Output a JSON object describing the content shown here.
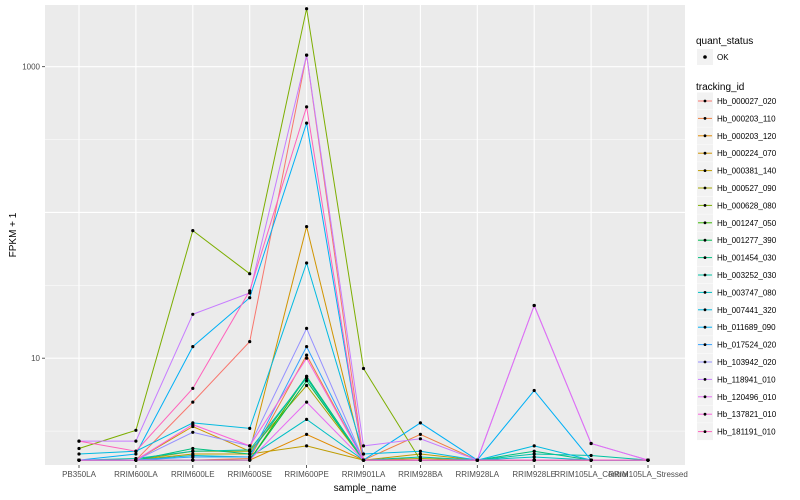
{
  "chart_data": {
    "type": "line",
    "title": "",
    "xlabel": "sample_name",
    "ylabel": "FPKM + 1",
    "y_scale": "log10",
    "ylim": [
      1.85,
      2650
    ],
    "y_ticks": [
      10,
      1000
    ],
    "y_tick_labels": [
      "10",
      "1000"
    ],
    "grid": true,
    "legend_position": "right",
    "categories": [
      "PB350LA",
      "RRIM600LA",
      "RRIM600LE",
      "RRIM600SE",
      "RRIM600PE",
      "RRIM901LA",
      "RRIM928BA",
      "RRIM928LA",
      "RRIM928LE",
      "RRIM105LA_Control",
      "RRIM105LA_Stressed"
    ],
    "point_legend": {
      "title": "quant_status",
      "entries": [
        "OK"
      ]
    },
    "series_legend_title": "tracking_id",
    "series": [
      {
        "name": "Hb_000027_020",
        "color": "#F8766D",
        "values": [
          2.0,
          2.0,
          5.0,
          13.0,
          1200,
          2.0,
          2.0,
          2.0,
          2.0,
          2.0,
          2.0
        ]
      },
      {
        "name": "Hb_000203_110",
        "color": "#EE8043",
        "values": [
          2.0,
          2.0,
          2.0,
          2.05,
          10.5,
          2.0,
          3.0,
          2.0,
          2.0,
          2.0,
          2.0
        ]
      },
      {
        "name": "Hb_000203_120",
        "color": "#E18A00",
        "values": [
          2.0,
          2.0,
          2.0,
          2.0,
          3.0,
          2.0,
          2.0,
          2.0,
          2.0,
          2.0,
          2.0
        ]
      },
      {
        "name": "Hb_000224_070",
        "color": "#D09400",
        "values": [
          2.0,
          2.0,
          3.4,
          2.3,
          80,
          2.0,
          2.0,
          2.0,
          2.0,
          2.0,
          2.0
        ]
      },
      {
        "name": "Hb_000381_140",
        "color": "#BE9C00",
        "values": [
          2.0,
          2.0,
          2.2,
          2.2,
          2.5,
          2.0,
          2.2,
          2.0,
          2.0,
          2.0,
          2.0
        ]
      },
      {
        "name": "Hb_000527_090",
        "color": "#A3A500",
        "values": [
          2.0,
          2.0,
          2.3,
          2.3,
          6.5,
          2.0,
          2.05,
          2.0,
          2.0,
          2.0,
          2.0
        ]
      },
      {
        "name": "Hb_000628_080",
        "color": "#7CAE00",
        "values": [
          2.4,
          3.2,
          75,
          38,
          2500,
          8.5,
          2.0,
          2.0,
          2.0,
          2.0,
          2.0
        ]
      },
      {
        "name": "Hb_001247_050",
        "color": "#39B600",
        "values": [
          2.0,
          2.0,
          2.0,
          2.0,
          7.5,
          2.0,
          2.0,
          2.0,
          2.0,
          2.0,
          2.0
        ]
      },
      {
        "name": "Hb_001277_390",
        "color": "#00BB4E",
        "values": [
          2.0,
          2.0,
          2.0,
          2.0,
          7.0,
          2.0,
          2.0,
          2.0,
          2.0,
          2.0,
          2.0
        ]
      },
      {
        "name": "Hb_001454_030",
        "color": "#00BF7D",
        "values": [
          2.0,
          2.0,
          2.4,
          2.2,
          7.5,
          2.0,
          2.0,
          2.0,
          2.3,
          2.0,
          2.0
        ]
      },
      {
        "name": "Hb_003252_030",
        "color": "#00C1A3",
        "values": [
          2.0,
          2.05,
          2.3,
          2.35,
          7.3,
          2.0,
          2.1,
          2.0,
          2.2,
          2.15,
          2.0
        ]
      },
      {
        "name": "Hb_003747_080",
        "color": "#00BFC4",
        "values": [
          2.0,
          2.0,
          2.15,
          2.1,
          3.8,
          2.0,
          2.0,
          2.0,
          2.1,
          2.0,
          2.0
        ]
      },
      {
        "name": "Hb_007441_320",
        "color": "#00BAE0",
        "values": [
          2.2,
          2.3,
          3.6,
          3.3,
          45,
          2.2,
          2.3,
          2.0,
          2.5,
          2.0,
          2.0
        ]
      },
      {
        "name": "Hb_011689_090",
        "color": "#00B0F6",
        "values": [
          2.0,
          2.2,
          12,
          26,
          410,
          2.0,
          3.6,
          2.0,
          6.0,
          2.0,
          2.0
        ]
      },
      {
        "name": "Hb_017524_020",
        "color": "#35A2FF",
        "values": [
          2.0,
          2.0,
          2.1,
          2.1,
          12,
          2.0,
          2.0,
          2.0,
          2.0,
          2.0,
          2.0
        ]
      },
      {
        "name": "Hb_103942_020",
        "color": "#9590FF",
        "values": [
          2.0,
          2.0,
          3.1,
          2.5,
          16,
          2.0,
          2.0,
          2.0,
          23,
          2.6,
          2.0
        ]
      },
      {
        "name": "Hb_118941_010",
        "color": "#C77CFF",
        "values": [
          2.7,
          2.7,
          20,
          28,
          1200,
          2.5,
          2.8,
          2.0,
          2.0,
          2.0,
          2.0
        ]
      },
      {
        "name": "Hb_120496_010",
        "color": "#E76BF3",
        "values": [
          2.0,
          2.0,
          2.0,
          2.0,
          5.0,
          2.0,
          2.0,
          2.0,
          23,
          2.6,
          2.0
        ]
      },
      {
        "name": "Hb_137821_010",
        "color": "#FA62DB",
        "values": [
          2.0,
          2.0,
          3.5,
          2.5,
          10,
          2.0,
          2.0,
          2.0,
          2.0,
          2.0,
          2.0
        ]
      },
      {
        "name": "Hb_181191_010",
        "color": "#FF62BC",
        "values": [
          2.7,
          2.3,
          6.2,
          29,
          530,
          2.0,
          2.0,
          2.0,
          2.0,
          2.0,
          2.0
        ]
      }
    ]
  }
}
